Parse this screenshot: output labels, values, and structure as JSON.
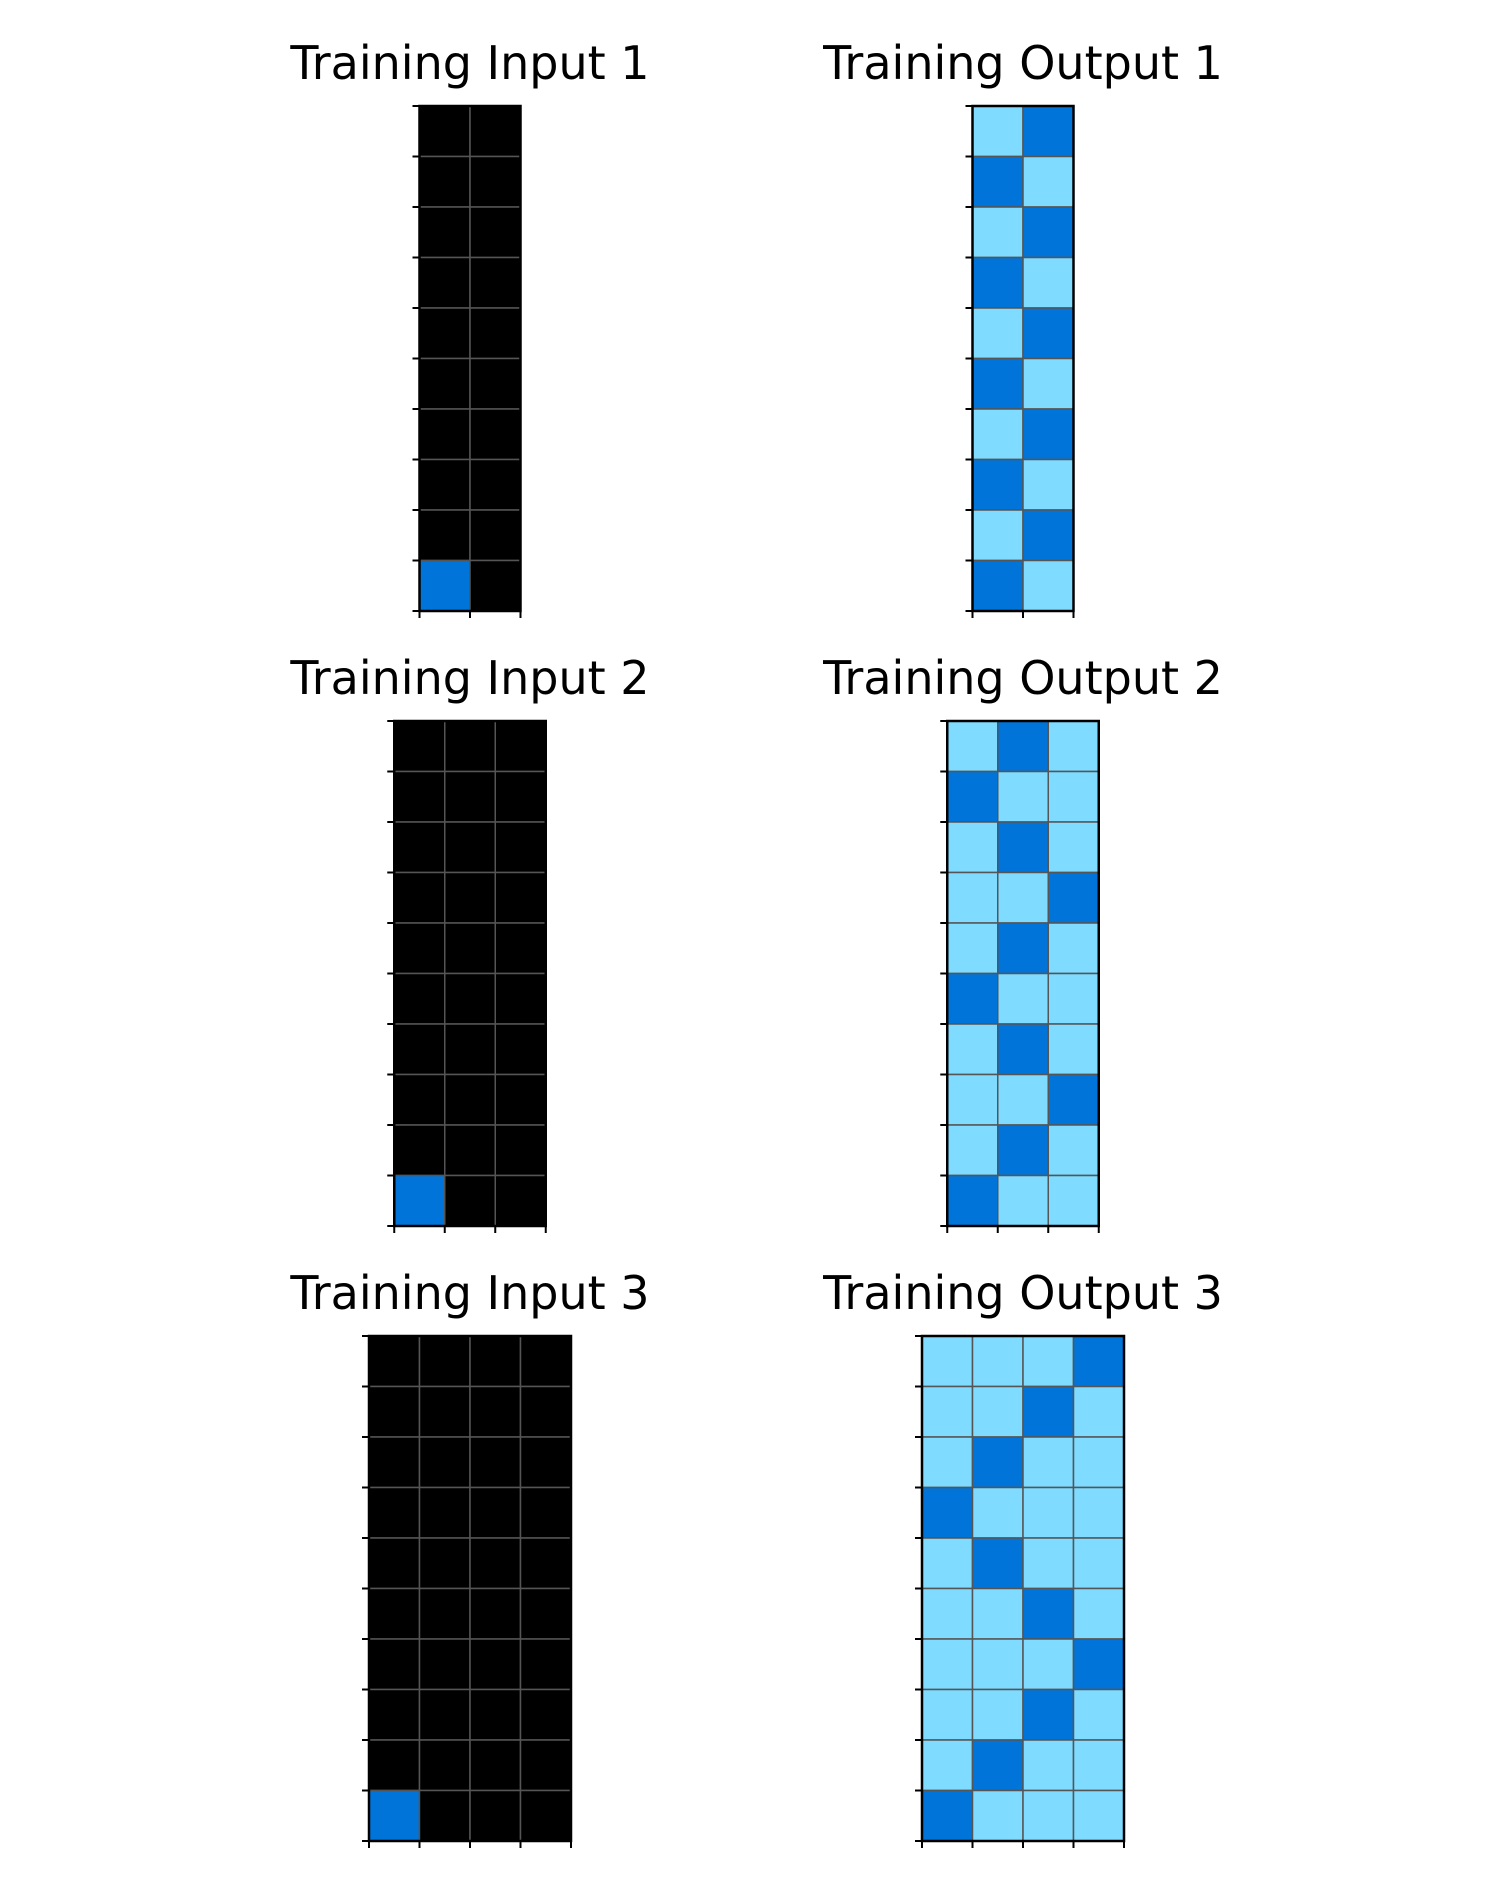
{
  "colors": {
    "0": "#000000",
    "1": "#0074D9",
    "8": "#7FDBFF",
    "gridline": "#555555",
    "frame": "#000000"
  },
  "panels": [
    {
      "title": "Training Input 1",
      "grid": [
        [
          0,
          0
        ],
        [
          0,
          0
        ],
        [
          0,
          0
        ],
        [
          0,
          0
        ],
        [
          0,
          0
        ],
        [
          0,
          0
        ],
        [
          0,
          0
        ],
        [
          0,
          0
        ],
        [
          0,
          0
        ],
        [
          1,
          0
        ]
      ]
    },
    {
      "title": "Training Output 1",
      "grid": [
        [
          8,
          1
        ],
        [
          1,
          8
        ],
        [
          8,
          1
        ],
        [
          1,
          8
        ],
        [
          8,
          1
        ],
        [
          1,
          8
        ],
        [
          8,
          1
        ],
        [
          1,
          8
        ],
        [
          8,
          1
        ],
        [
          1,
          8
        ]
      ]
    },
    {
      "title": "Training Input 2",
      "grid": [
        [
          0,
          0,
          0
        ],
        [
          0,
          0,
          0
        ],
        [
          0,
          0,
          0
        ],
        [
          0,
          0,
          0
        ],
        [
          0,
          0,
          0
        ],
        [
          0,
          0,
          0
        ],
        [
          0,
          0,
          0
        ],
        [
          0,
          0,
          0
        ],
        [
          0,
          0,
          0
        ],
        [
          1,
          0,
          0
        ]
      ]
    },
    {
      "title": "Training Output 2",
      "grid": [
        [
          8,
          1,
          8
        ],
        [
          1,
          8,
          8
        ],
        [
          8,
          1,
          8
        ],
        [
          8,
          8,
          1
        ],
        [
          8,
          1,
          8
        ],
        [
          1,
          8,
          8
        ],
        [
          8,
          1,
          8
        ],
        [
          8,
          8,
          1
        ],
        [
          8,
          1,
          8
        ],
        [
          1,
          8,
          8
        ]
      ]
    },
    {
      "title": "Training Input 3",
      "grid": [
        [
          0,
          0,
          0,
          0
        ],
        [
          0,
          0,
          0,
          0
        ],
        [
          0,
          0,
          0,
          0
        ],
        [
          0,
          0,
          0,
          0
        ],
        [
          0,
          0,
          0,
          0
        ],
        [
          0,
          0,
          0,
          0
        ],
        [
          0,
          0,
          0,
          0
        ],
        [
          0,
          0,
          0,
          0
        ],
        [
          0,
          0,
          0,
          0
        ],
        [
          1,
          0,
          0,
          0
        ]
      ]
    },
    {
      "title": "Training Output 3",
      "grid": [
        [
          8,
          8,
          8,
          1
        ],
        [
          8,
          8,
          1,
          8
        ],
        [
          8,
          1,
          8,
          8
        ],
        [
          1,
          8,
          8,
          8
        ],
        [
          8,
          1,
          8,
          8
        ],
        [
          8,
          8,
          1,
          8
        ],
        [
          8,
          8,
          8,
          1
        ],
        [
          8,
          8,
          1,
          8
        ],
        [
          8,
          1,
          8,
          8
        ],
        [
          1,
          8,
          8,
          8
        ]
      ]
    }
  ]
}
